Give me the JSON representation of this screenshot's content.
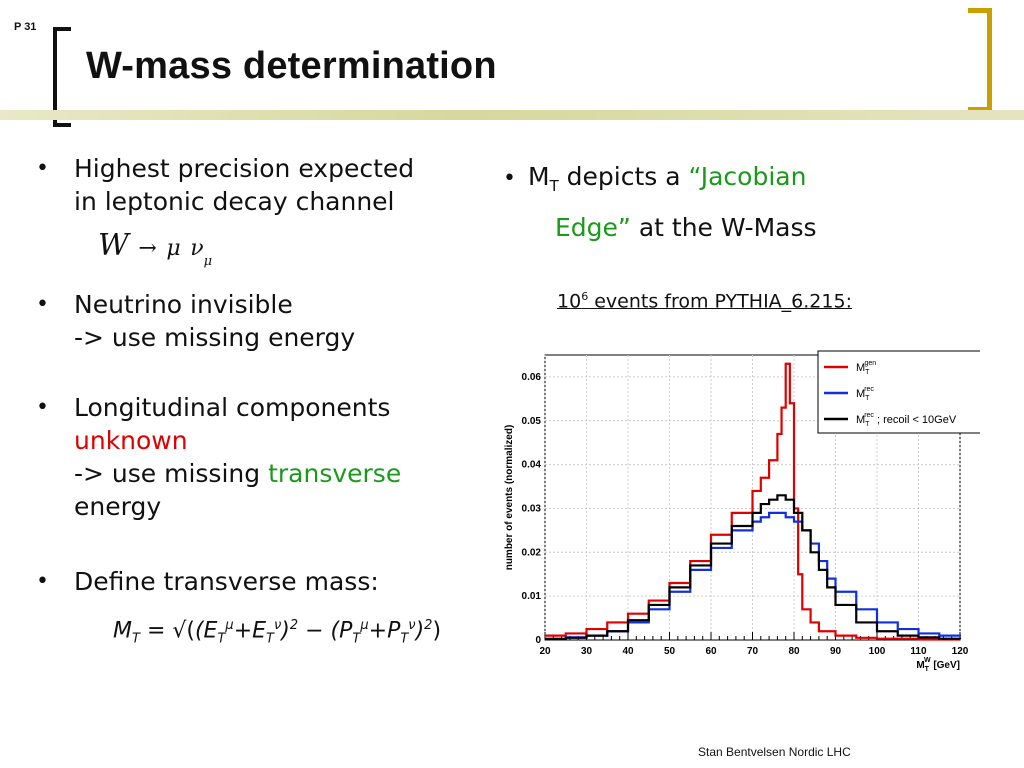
{
  "page_number": "P 31",
  "title": "W-mass determination",
  "left_bullets": [
    {
      "lines": [
        "Highest precision expected",
        "in leptonic decay channel"
      ]
    },
    {
      "lines": [
        "Neutrino invisible",
        "-> use missing energy"
      ]
    },
    {
      "line1": "Longitudinal components",
      "red": "unknown",
      "line3_prefix": "-> use missing ",
      "green": "transverse",
      "line4": "energy"
    },
    {
      "lines": [
        "Define transverse mass:"
      ]
    }
  ],
  "formula_decay": {
    "W": "W",
    "arrow": "→",
    "mu": "μ",
    "nu": "ν",
    "sub": "μ"
  },
  "right_bullet": {
    "m": "M",
    "sub": "T",
    "text1": " depicts a ",
    "green1": "“Jacobian",
    "green2": "Edge”",
    "text2": " at the W-Mass"
  },
  "events_caption": {
    "base": "10",
    "exp": "6",
    "text": " events from PYTHIA_6.215:"
  },
  "footer": "Stan Bentvelsen Nordic LHC",
  "colors": {
    "accent_gold": "#c8a000",
    "red": "#e00000",
    "green": "#1a9a1a"
  },
  "chart_data": {
    "type": "line",
    "ylabel": "number of events (normalized)",
    "xlabel": "M_T^W [GeV]",
    "xlim": [
      20,
      120
    ],
    "ylim": [
      0,
      0.065
    ],
    "x_ticks": [
      "20",
      "30",
      "40",
      "50",
      "60",
      "70",
      "80",
      "90",
      "100",
      "110",
      "120"
    ],
    "y_ticks": [
      "0",
      "0.01",
      "0.02",
      "0.03",
      "0.04",
      "0.05",
      "0.06"
    ],
    "grid": true,
    "legend_position": "top-right",
    "series": [
      {
        "name": "M_T^gen",
        "label_main": "M",
        "label_sub": "T",
        "label_sup": "gen",
        "label_suffix": "",
        "color": "#e00000",
        "x": [
          20,
          25,
          30,
          35,
          40,
          45,
          50,
          55,
          60,
          65,
          70,
          72,
          74,
          76,
          77,
          78,
          79,
          80,
          81,
          82,
          84,
          86,
          90,
          95,
          100,
          110,
          120
        ],
        "y": [
          0.001,
          0.0015,
          0.0025,
          0.004,
          0.006,
          0.009,
          0.013,
          0.018,
          0.024,
          0.029,
          0.034,
          0.037,
          0.041,
          0.047,
          0.053,
          0.063,
          0.054,
          0.03,
          0.015,
          0.007,
          0.004,
          0.002,
          0.001,
          0.0005,
          0.0003,
          0.0001,
          0.0001
        ]
      },
      {
        "name": "M_T^rec",
        "label_main": "M",
        "label_sub": "T",
        "label_sup": "rec",
        "label_suffix": "",
        "color": "#1030e0",
        "x": [
          20,
          25,
          30,
          35,
          40,
          45,
          50,
          55,
          60,
          65,
          70,
          72,
          74,
          76,
          78,
          80,
          82,
          84,
          86,
          88,
          90,
          95,
          100,
          105,
          110,
          115,
          120
        ],
        "y": [
          0.0003,
          0.0006,
          0.001,
          0.002,
          0.004,
          0.007,
          0.011,
          0.016,
          0.021,
          0.025,
          0.027,
          0.028,
          0.029,
          0.029,
          0.028,
          0.027,
          0.025,
          0.022,
          0.018,
          0.014,
          0.011,
          0.007,
          0.004,
          0.0025,
          0.0015,
          0.001,
          0.0008
        ]
      },
      {
        "name": "M_T^rec ; recoil < 10GeV",
        "label_main": "M",
        "label_sub": "T",
        "label_sup": "rec",
        "label_suffix": " ; recoil < 10GeV",
        "color": "#000000",
        "x": [
          20,
          25,
          30,
          35,
          40,
          45,
          50,
          55,
          60,
          65,
          70,
          72,
          74,
          76,
          78,
          80,
          82,
          84,
          86,
          88,
          90,
          95,
          100,
          105,
          110,
          115,
          120
        ],
        "y": [
          0.0002,
          0.0005,
          0.001,
          0.002,
          0.0045,
          0.008,
          0.012,
          0.017,
          0.022,
          0.026,
          0.029,
          0.031,
          0.032,
          0.033,
          0.032,
          0.029,
          0.025,
          0.02,
          0.016,
          0.012,
          0.008,
          0.004,
          0.002,
          0.001,
          0.0006,
          0.0003,
          0.0002
        ]
      }
    ]
  }
}
